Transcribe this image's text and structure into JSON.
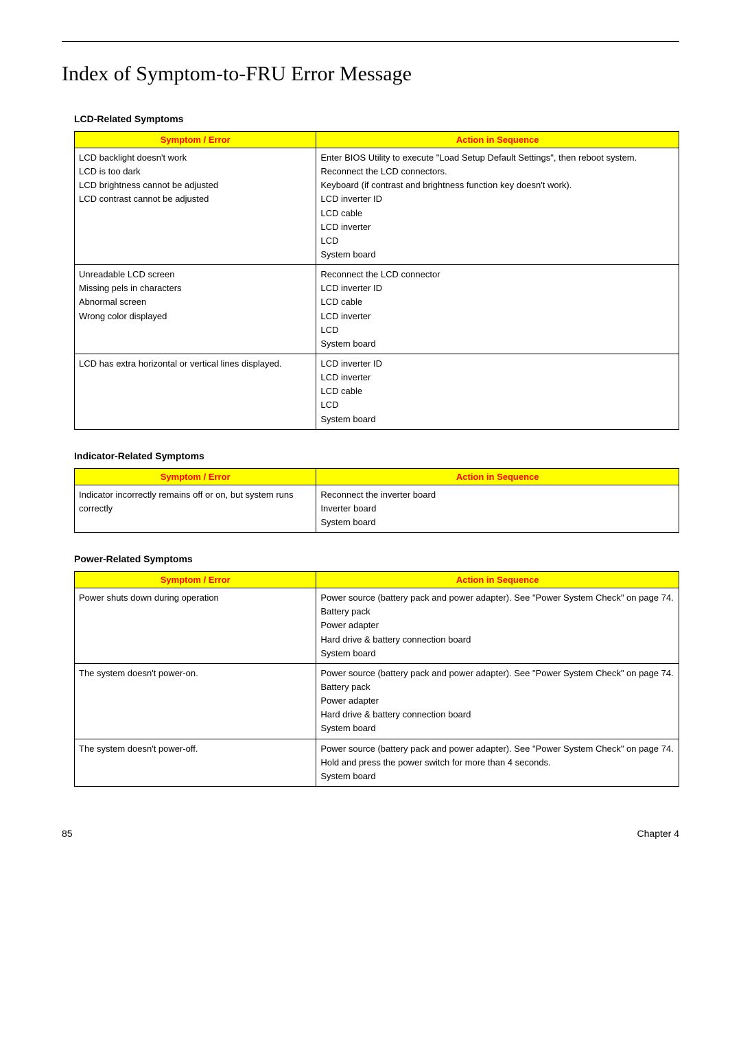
{
  "page": {
    "title": "Index of Symptom-to-FRU Error Message",
    "page_number": "85",
    "chapter_label": "Chapter 4"
  },
  "columns": {
    "symptom": "Symptom / Error",
    "action": "Action in Sequence"
  },
  "sections": [
    {
      "title": "LCD-Related Symptoms",
      "rows": [
        {
          "symptom": [
            "LCD backlight doesn't work",
            "LCD is too dark",
            "LCD brightness cannot be adjusted",
            "LCD contrast cannot be adjusted"
          ],
          "action": [
            "Enter BIOS Utility to execute \"Load Setup Default Settings\", then reboot system.",
            "Reconnect the LCD connectors.",
            "Keyboard (if contrast and brightness function key doesn't work).",
            "LCD inverter ID",
            "LCD cable",
            "LCD inverter",
            "LCD",
            "System board"
          ]
        },
        {
          "symptom": [
            "Unreadable LCD screen",
            "Missing pels in characters",
            "Abnormal screen",
            "Wrong color displayed"
          ],
          "action": [
            "Reconnect the LCD connector",
            "LCD inverter ID",
            "LCD cable",
            "LCD inverter",
            "LCD",
            "System board"
          ]
        },
        {
          "symptom": [
            "LCD has extra horizontal or vertical lines displayed."
          ],
          "action": [
            "LCD inverter ID",
            "LCD inverter",
            "LCD cable",
            "LCD",
            "System board"
          ]
        }
      ]
    },
    {
      "title": "Indicator-Related Symptoms",
      "rows": [
        {
          "symptom": [
            "Indicator incorrectly remains off or on, but system runs correctly"
          ],
          "action": [
            "Reconnect the inverter board",
            "Inverter board",
            "System board"
          ]
        }
      ]
    },
    {
      "title": "Power-Related Symptoms",
      "rows": [
        {
          "symptom": [
            "Power shuts down during operation"
          ],
          "action": [
            "Power source (battery pack and power adapter). See \"Power System Check\" on page 74.",
            "Battery pack",
            "Power adapter",
            "Hard drive & battery connection board",
            "System board"
          ]
        },
        {
          "symptom": [
            "The system doesn't power-on."
          ],
          "action": [
            "Power source (battery pack and power adapter). See \"Power System Check\" on page 74.",
            "Battery pack",
            "Power adapter",
            "Hard drive & battery connection board",
            "System board"
          ]
        },
        {
          "symptom": [
            "The system doesn't power-off."
          ],
          "action": [
            "Power source (battery pack and power adapter). See \"Power System Check\" on page 74.",
            "Hold and press the power switch for more than 4 seconds.",
            "System board"
          ]
        }
      ]
    }
  ],
  "style": {
    "header_bg": "#ffff00",
    "header_fg": "#ff0000",
    "border_color": "#000000",
    "body_bg": "#ffffff",
    "font_size_body": 13,
    "font_size_title": 30,
    "font_size_section": 14,
    "col_widths_pct": [
      40,
      60
    ]
  }
}
